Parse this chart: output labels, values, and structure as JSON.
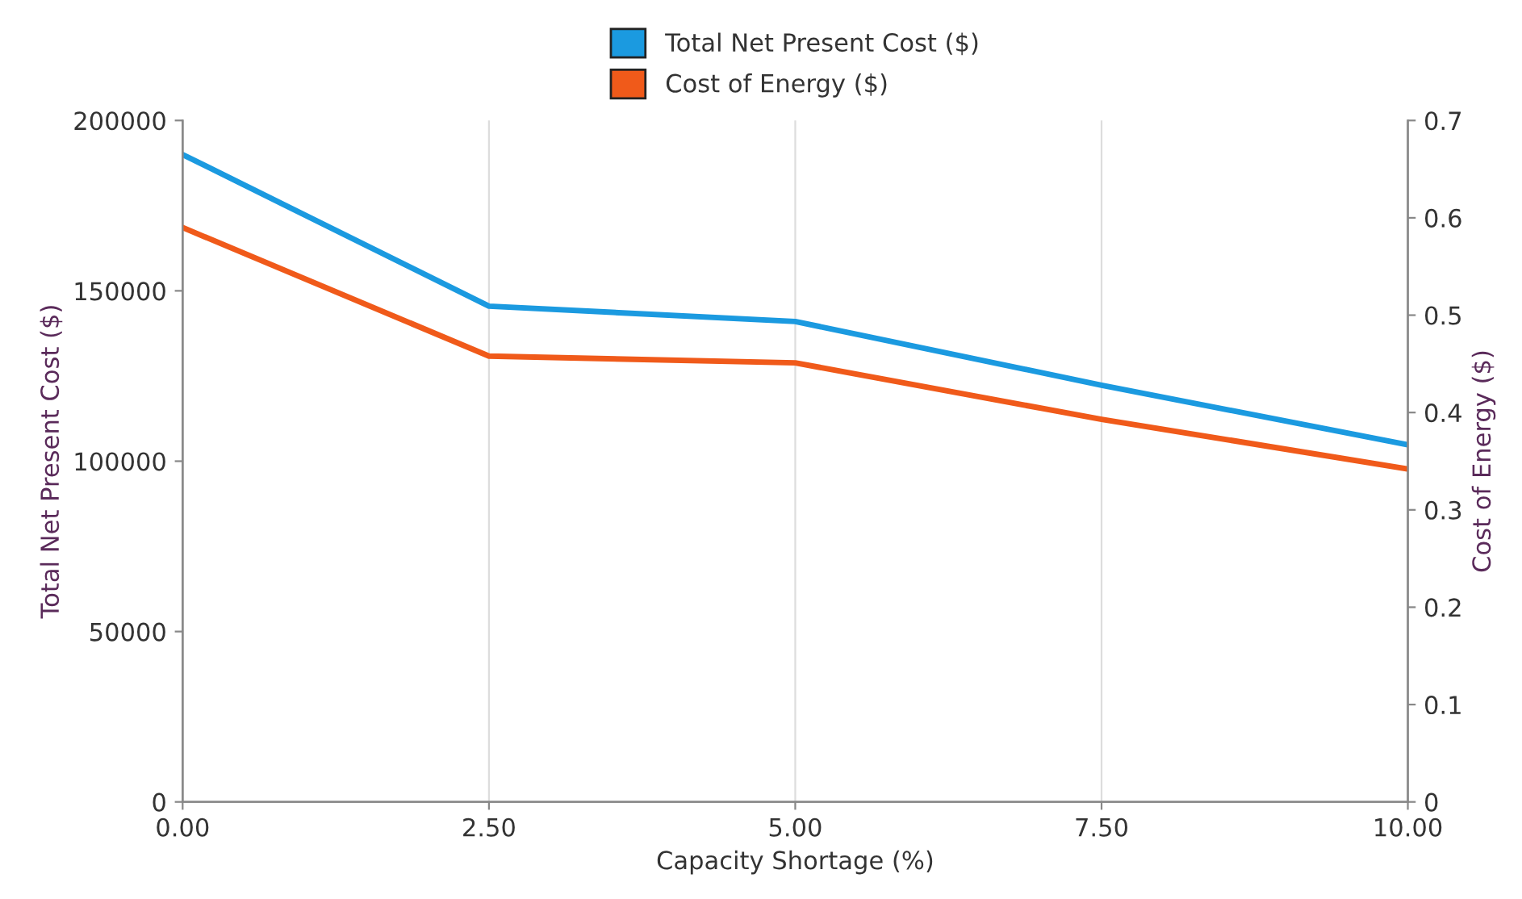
{
  "chart_data": {
    "type": "line",
    "xlabel": "Capacity Shortage (%)",
    "ylabel": "Total Net Present Cost ($)",
    "y2label": "Cost of Energy ($)",
    "x": [
      0,
      2.5,
      5,
      7.5,
      10
    ],
    "series": [
      {
        "name": "Total Net Present Cost ($)",
        "color": "#1b9ae0",
        "values": [
          190000,
          145500,
          141000,
          122300,
          104800
        ]
      },
      {
        "name": "Cost of Energy ($)",
        "color": "#f05a1a",
        "axis": "y2",
        "values": [
          0.59,
          0.458,
          0.451,
          0.393,
          0.342
        ]
      }
    ],
    "xlim": [
      0,
      10
    ],
    "xticks": [
      {
        "value": 0,
        "label": "0.00"
      },
      {
        "value": 2.5,
        "label": "2.50"
      },
      {
        "value": 5,
        "label": "5.00"
      },
      {
        "value": 7.5,
        "label": "7.50"
      },
      {
        "value": 10,
        "label": "10.00"
      }
    ],
    "ylim": [
      0,
      200000
    ],
    "yticks": [
      0,
      50000,
      100000,
      150000,
      200000
    ],
    "y2lim": [
      0,
      0.7
    ],
    "y2ticks": [
      0,
      0.1,
      0.2,
      0.3,
      0.4,
      0.5,
      0.6,
      0.7
    ],
    "grid": "x",
    "legend": "top",
    "marker": "none",
    "line_style": "solid"
  }
}
